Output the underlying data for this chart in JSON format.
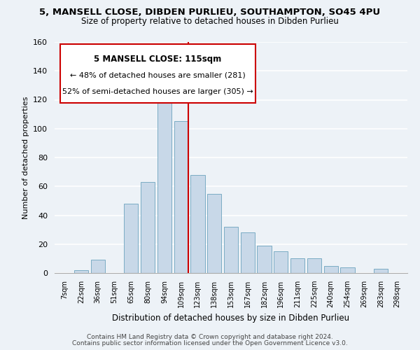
{
  "title1": "5, MANSELL CLOSE, DIBDEN PURLIEU, SOUTHAMPTON, SO45 4PU",
  "title2": "Size of property relative to detached houses in Dibden Purlieu",
  "xlabel": "Distribution of detached houses by size in Dibden Purlieu",
  "ylabel": "Number of detached properties",
  "bar_labels": [
    "7sqm",
    "22sqm",
    "36sqm",
    "51sqm",
    "65sqm",
    "80sqm",
    "94sqm",
    "109sqm",
    "123sqm",
    "138sqm",
    "153sqm",
    "167sqm",
    "182sqm",
    "196sqm",
    "211sqm",
    "225sqm",
    "240sqm",
    "254sqm",
    "269sqm",
    "283sqm",
    "298sqm"
  ],
  "bar_values": [
    0,
    2,
    9,
    0,
    48,
    63,
    119,
    105,
    68,
    55,
    32,
    28,
    19,
    15,
    10,
    10,
    5,
    4,
    0,
    3,
    0
  ],
  "bar_color": "#c8d8e8",
  "bar_edge_color": "#7bacc4",
  "vline_color": "#cc0000",
  "ylim": [
    0,
    160
  ],
  "yticks": [
    0,
    20,
    40,
    60,
    80,
    100,
    120,
    140,
    160
  ],
  "annotation_title": "5 MANSELL CLOSE: 115sqm",
  "annotation_line1": "← 48% of detached houses are smaller (281)",
  "annotation_line2": "52% of semi-detached houses are larger (305) →",
  "annotation_box_color": "#ffffff",
  "annotation_box_edge": "#cc0000",
  "footer1": "Contains HM Land Registry data © Crown copyright and database right 2024.",
  "footer2": "Contains public sector information licensed under the Open Government Licence v3.0.",
  "background_color": "#edf2f7"
}
